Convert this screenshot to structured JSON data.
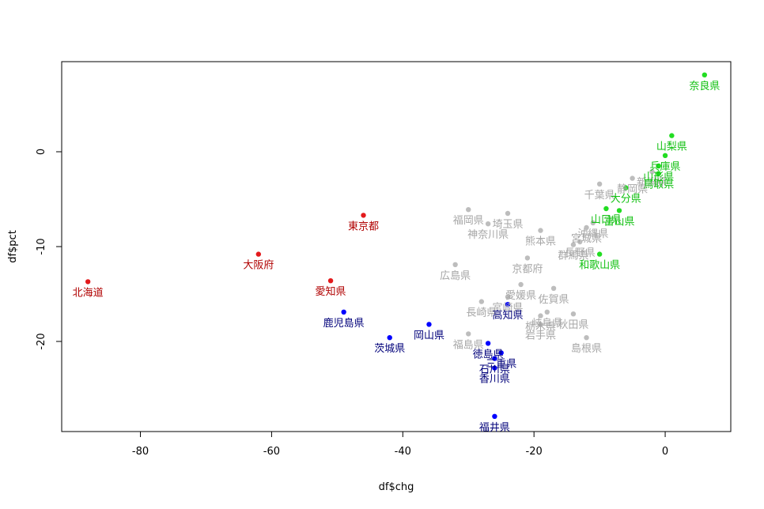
{
  "chart_data": {
    "type": "scatter",
    "xlabel": "df$chg",
    "ylabel": "df$pct",
    "xlim": [
      -92,
      10
    ],
    "ylim": [
      -29.5,
      9.5
    ],
    "xticks": [
      "-80",
      "-60",
      "-40",
      "-20",
      "0"
    ],
    "yticks": [
      "-20",
      "-10",
      "0"
    ],
    "colors": {
      "red": "#e31a1c",
      "red_text": "#b00000",
      "blue": "#0000ff",
      "blue_text": "#00007a",
      "green": "#22dd22",
      "green_text": "#10c010",
      "gray": "#bdbdbd",
      "gray_text": "#a6a6a6"
    },
    "points": [
      {
        "label": "北海道",
        "x": -88,
        "y": -13.7,
        "group": "red"
      },
      {
        "label": "大阪府",
        "x": -62,
        "y": -10.8,
        "group": "red"
      },
      {
        "label": "東京都",
        "x": -46,
        "y": -6.7,
        "group": "red"
      },
      {
        "label": "愛知県",
        "x": -51,
        "y": -13.6,
        "group": "red"
      },
      {
        "label": "鹿児島県",
        "x": -49,
        "y": -16.9,
        "group": "blue"
      },
      {
        "label": "茨城県",
        "x": -42,
        "y": -19.6,
        "group": "blue"
      },
      {
        "label": "岡山県",
        "x": -36,
        "y": -18.2,
        "group": "blue"
      },
      {
        "label": "高知県",
        "x": -24,
        "y": -16.1,
        "group": "blue"
      },
      {
        "label": "徳島県",
        "x": -27,
        "y": -20.2,
        "group": "blue"
      },
      {
        "label": "三重県",
        "x": -25,
        "y": -21.2,
        "group": "blue"
      },
      {
        "label": "石川県",
        "x": -26,
        "y": -21.8,
        "group": "blue"
      },
      {
        "label": "香川県",
        "x": -26,
        "y": -22.8,
        "group": "blue"
      },
      {
        "label": "福井県",
        "x": -26,
        "y": -27.9,
        "group": "blue"
      },
      {
        "label": "奈良県",
        "x": 6,
        "y": 8.1,
        "group": "green"
      },
      {
        "label": "山梨県",
        "x": 1,
        "y": 1.7,
        "group": "green"
      },
      {
        "label": "兵庫県",
        "x": 0,
        "y": -0.4,
        "group": "green"
      },
      {
        "label": "山形県",
        "x": -1,
        "y": -1.5,
        "group": "green"
      },
      {
        "label": "鳥取県",
        "x": -1,
        "y": -2.3,
        "group": "green"
      },
      {
        "label": "大分県",
        "x": -6,
        "y": -3.8,
        "group": "green"
      },
      {
        "label": "山口県",
        "x": -9,
        "y": -6.0,
        "group": "green"
      },
      {
        "label": "富山県",
        "x": -7,
        "y": -6.2,
        "group": "green"
      },
      {
        "label": "和歌山県",
        "x": -10,
        "y": -10.8,
        "group": "green"
      },
      {
        "label": "静岡県",
        "x": -5,
        "y": -2.8,
        "group": "gray"
      },
      {
        "label": "新潟県",
        "x": -2,
        "y": -2.1,
        "group": "gray"
      },
      {
        "label": "千葉県",
        "x": -10,
        "y": -3.4,
        "group": "gray"
      },
      {
        "label": "福岡県",
        "x": -30,
        "y": -6.1,
        "group": "gray"
      },
      {
        "label": "埼玉県",
        "x": -24,
        "y": -6.5,
        "group": "gray"
      },
      {
        "label": "神奈川県",
        "x": -27,
        "y": -7.6,
        "group": "gray"
      },
      {
        "label": "熊本県",
        "x": -19,
        "y": -8.3,
        "group": "gray"
      },
      {
        "label": "宮城県",
        "x": -12,
        "y": -8.0,
        "group": "gray"
      },
      {
        "label": "沖縄県",
        "x": -11,
        "y": -7.5,
        "group": "gray"
      },
      {
        "label": "長野県",
        "x": -13,
        "y": -9.5,
        "group": "gray"
      },
      {
        "label": "群馬県",
        "x": -14,
        "y": -9.8,
        "group": "gray"
      },
      {
        "label": "京都府",
        "x": -21,
        "y": -11.2,
        "group": "gray"
      },
      {
        "label": "広島県",
        "x": -32,
        "y": -11.9,
        "group": "gray"
      },
      {
        "label": "愛媛県",
        "x": -22,
        "y": -14.0,
        "group": "gray"
      },
      {
        "label": "佐賀県",
        "x": -17,
        "y": -14.4,
        "group": "gray"
      },
      {
        "label": "宮崎県",
        "x": -24,
        "y": -15.3,
        "group": "gray"
      },
      {
        "label": "長崎県",
        "x": -28,
        "y": -15.8,
        "group": "gray"
      },
      {
        "label": "岐阜県",
        "x": -18,
        "y": -16.9,
        "group": "gray"
      },
      {
        "label": "栃木県",
        "x": -19,
        "y": -17.3,
        "group": "gray"
      },
      {
        "label": "秋田県",
        "x": -14,
        "y": -17.1,
        "group": "gray"
      },
      {
        "label": "岩手県",
        "x": -19,
        "y": -18.2,
        "group": "gray"
      },
      {
        "label": "福島県",
        "x": -30,
        "y": -19.2,
        "group": "gray"
      },
      {
        "label": "島根県",
        "x": -12,
        "y": -19.6,
        "group": "gray"
      }
    ]
  }
}
